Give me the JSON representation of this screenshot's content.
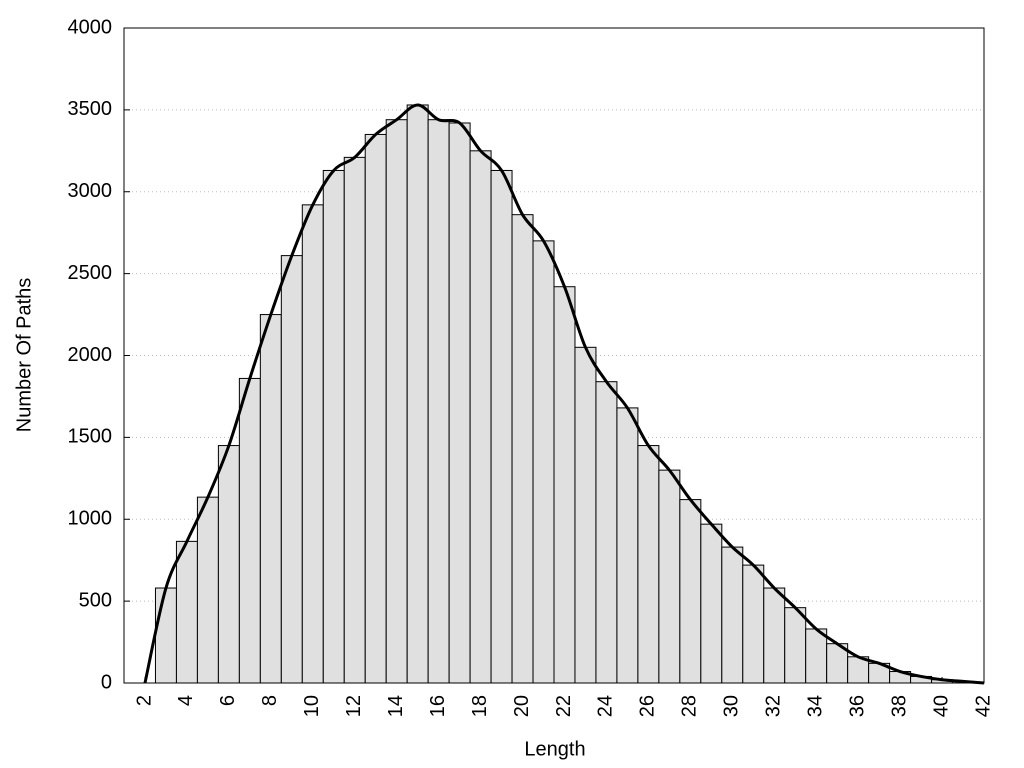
{
  "chart_data": {
    "type": "histogram",
    "x_label": "Length",
    "y_label": "Number Of Paths",
    "bins": [
      2.5,
      3.5,
      4.5,
      5.5,
      6.5,
      7.5,
      8.5,
      9.5,
      10.5,
      11.5,
      12.5,
      13.5,
      14.5,
      15.5,
      16.5,
      17.5,
      18.5,
      19.5,
      20.5,
      21.5,
      22.5,
      23.5,
      24.5,
      25.5,
      26.5,
      27.5,
      28.5,
      29.5,
      30.5,
      31.5,
      32.5,
      33.5,
      34.5,
      35.5,
      36.5,
      37.5,
      38.5,
      39.5,
      40.5,
      41.5
    ],
    "counts": [
      580,
      865,
      1135,
      1450,
      1860,
      2250,
      2610,
      2920,
      3130,
      3210,
      3350,
      3440,
      3530,
      3440,
      3420,
      3250,
      3130,
      2860,
      2700,
      2420,
      2050,
      1840,
      1680,
      1450,
      1300,
      1120,
      970,
      830,
      720,
      580,
      460,
      330,
      240,
      160,
      120,
      70,
      40,
      20,
      10
    ],
    "bar_color": "#e0e0e0",
    "line": {
      "color": "#000000",
      "x": [
        2,
        3,
        4,
        5,
        6,
        7,
        8,
        9,
        10,
        11,
        12,
        13,
        14,
        15,
        16,
        17,
        18,
        19,
        20,
        21,
        22,
        23,
        24,
        25,
        26,
        27,
        28,
        29,
        30,
        31,
        32,
        33,
        34,
        35,
        36,
        37,
        38,
        39,
        40,
        41,
        42
      ],
      "values": [
        0,
        580,
        865,
        1135,
        1450,
        1860,
        2250,
        2610,
        2920,
        3130,
        3210,
        3350,
        3440,
        3530,
        3440,
        3420,
        3250,
        3130,
        2860,
        2700,
        2420,
        2050,
        1840,
        1680,
        1450,
        1300,
        1120,
        970,
        830,
        720,
        580,
        460,
        330,
        240,
        160,
        120,
        70,
        40,
        20,
        10,
        0
      ]
    },
    "xlim": [
      1,
      42
    ],
    "xticks": [
      2,
      4,
      6,
      8,
      10,
      12,
      14,
      16,
      18,
      20,
      22,
      24,
      26,
      28,
      30,
      32,
      34,
      36,
      38,
      40,
      42
    ],
    "ylim": [
      0,
      4000
    ],
    "yticks": [
      0,
      500,
      1000,
      1500,
      2000,
      2500,
      3000,
      3500,
      4000
    ],
    "grid": true
  }
}
